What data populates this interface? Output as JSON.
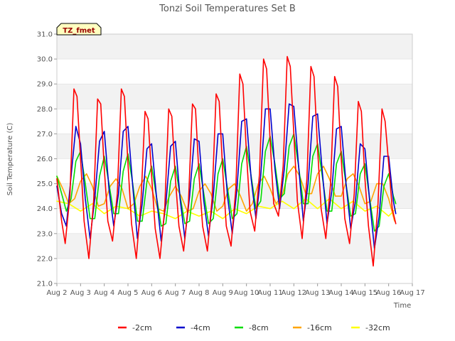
{
  "chart_data": {
    "type": "line",
    "title": "Tonzi Soil Temperatures Set B",
    "xlabel": "Time",
    "ylabel": "Soil Temperature (C)",
    "ylim": [
      21.0,
      31.0
    ],
    "xlim": [
      2,
      17
    ],
    "y_ticks": [
      "21.0",
      "22.0",
      "23.0",
      "24.0",
      "25.0",
      "26.0",
      "27.0",
      "28.0",
      "29.0",
      "30.0",
      "31.0"
    ],
    "x_ticks": [
      "Aug 2",
      "Aug 3",
      "Aug 4",
      "Aug 5",
      "Aug 6",
      "Aug 7",
      "Aug 8",
      "Aug 9",
      "Aug 10",
      "Aug 11",
      "Aug 12",
      "Aug 13",
      "Aug 14",
      "Aug 15",
      "Aug 16",
      "Aug 17"
    ],
    "x_tick_values": [
      2,
      3,
      4,
      5,
      6,
      7,
      8,
      9,
      10,
      11,
      12,
      13,
      14,
      15,
      16,
      17
    ],
    "grid": "horizontal bands",
    "legend_position": "bottom",
    "annotation": "TZ_fmet",
    "series": [
      {
        "name": "-2cm",
        "color": "#ff0000",
        "x": [
          2.0,
          2.2,
          2.35,
          2.55,
          2.72,
          2.85,
          3.0,
          3.15,
          3.35,
          3.55,
          3.72,
          3.85,
          4.0,
          4.15,
          4.35,
          4.55,
          4.72,
          4.85,
          5.0,
          5.15,
          5.35,
          5.55,
          5.72,
          5.85,
          6.0,
          6.15,
          6.35,
          6.55,
          6.72,
          6.85,
          7.0,
          7.15,
          7.35,
          7.55,
          7.72,
          7.85,
          8.0,
          8.15,
          8.35,
          8.55,
          8.72,
          8.85,
          9.0,
          9.15,
          9.35,
          9.55,
          9.72,
          9.85,
          10.0,
          10.15,
          10.35,
          10.55,
          10.72,
          10.85,
          11.0,
          11.15,
          11.35,
          11.55,
          11.72,
          11.85,
          12.0,
          12.15,
          12.35,
          12.55,
          12.72,
          12.85,
          13.0,
          13.15,
          13.35,
          13.55,
          13.72,
          13.85,
          14.0,
          14.15,
          14.35,
          14.55,
          14.72,
          14.85,
          15.0,
          15.15,
          15.35,
          15.55,
          15.72,
          15.85,
          16.0,
          16.15,
          16.3
        ],
        "y": [
          25.2,
          23.5,
          22.6,
          24.5,
          28.8,
          28.5,
          26.0,
          23.5,
          22.0,
          24.3,
          28.4,
          28.2,
          25.6,
          23.5,
          22.7,
          24.6,
          28.8,
          28.5,
          25.8,
          23.4,
          22.0,
          24.3,
          27.9,
          27.6,
          25.3,
          23.2,
          22.0,
          24.0,
          28.0,
          27.7,
          25.2,
          23.3,
          22.3,
          24.2,
          28.2,
          28.0,
          25.3,
          23.3,
          22.3,
          24.4,
          28.6,
          28.3,
          25.5,
          23.3,
          22.5,
          24.8,
          29.4,
          29.0,
          26.2,
          23.9,
          23.1,
          25.4,
          30.0,
          29.6,
          26.7,
          24.2,
          23.7,
          25.7,
          30.1,
          29.7,
          27.0,
          24.3,
          22.8,
          25.2,
          29.7,
          29.3,
          26.4,
          24.0,
          22.8,
          25.0,
          29.3,
          28.9,
          26.0,
          23.6,
          22.6,
          24.6,
          28.3,
          27.9,
          25.2,
          23.3,
          21.7,
          24.2,
          28.0,
          27.5,
          25.8,
          24.0,
          23.4
        ]
      },
      {
        "name": "-4cm",
        "color": "#0000cc",
        "x": [
          2.0,
          2.2,
          2.4,
          2.6,
          2.8,
          3.0,
          3.2,
          3.4,
          3.6,
          3.8,
          4.0,
          4.2,
          4.4,
          4.6,
          4.8,
          5.0,
          5.2,
          5.4,
          5.6,
          5.8,
          6.0,
          6.2,
          6.4,
          6.6,
          6.8,
          7.0,
          7.2,
          7.4,
          7.6,
          7.8,
          8.0,
          8.2,
          8.4,
          8.6,
          8.8,
          9.0,
          9.2,
          9.4,
          9.6,
          9.8,
          10.0,
          10.2,
          10.4,
          10.6,
          10.8,
          11.0,
          11.2,
          11.4,
          11.6,
          11.8,
          12.0,
          12.2,
          12.4,
          12.6,
          12.8,
          13.0,
          13.2,
          13.4,
          13.6,
          13.8,
          14.0,
          14.2,
          14.4,
          14.6,
          14.8,
          15.0,
          15.2,
          15.4,
          15.6,
          15.8,
          16.0,
          16.2,
          16.3
        ],
        "y": [
          24.9,
          23.8,
          23.3,
          25.3,
          27.3,
          26.6,
          24.4,
          22.8,
          24.4,
          26.7,
          27.1,
          24.8,
          23.3,
          24.6,
          27.1,
          27.3,
          24.9,
          22.8,
          24.2,
          26.4,
          26.6,
          24.5,
          22.7,
          24.2,
          26.5,
          26.7,
          24.4,
          22.8,
          24.5,
          26.8,
          26.7,
          24.3,
          22.9,
          24.5,
          27.0,
          27.0,
          24.5,
          23.0,
          24.8,
          27.5,
          27.6,
          25.2,
          23.6,
          25.3,
          28.0,
          28.0,
          25.6,
          24.0,
          25.6,
          28.2,
          28.1,
          25.7,
          23.5,
          25.0,
          27.7,
          27.8,
          25.5,
          23.4,
          24.7,
          27.2,
          27.3,
          25.0,
          23.2,
          24.3,
          26.6,
          26.4,
          24.3,
          22.4,
          23.7,
          26.1,
          26.1,
          24.3,
          23.8
        ]
      },
      {
        "name": "-8cm",
        "color": "#00dd00",
        "x": [
          2.0,
          2.2,
          2.4,
          2.6,
          2.8,
          3.0,
          3.2,
          3.4,
          3.6,
          3.8,
          4.0,
          4.2,
          4.4,
          4.6,
          4.8,
          5.0,
          5.2,
          5.4,
          5.6,
          5.8,
          6.0,
          6.2,
          6.4,
          6.6,
          6.8,
          7.0,
          7.2,
          7.4,
          7.6,
          7.8,
          8.0,
          8.2,
          8.4,
          8.6,
          8.8,
          9.0,
          9.2,
          9.4,
          9.6,
          9.8,
          10.0,
          10.2,
          10.4,
          10.6,
          10.8,
          11.0,
          11.2,
          11.4,
          11.6,
          11.8,
          12.0,
          12.2,
          12.4,
          12.6,
          12.8,
          13.0,
          13.2,
          13.4,
          13.6,
          13.8,
          14.0,
          14.2,
          14.4,
          14.6,
          14.8,
          15.0,
          15.2,
          15.4,
          15.6,
          15.8,
          16.0,
          16.2,
          16.3
        ],
        "y": [
          25.3,
          24.6,
          23.9,
          24.4,
          25.9,
          26.3,
          25.0,
          23.6,
          23.6,
          25.3,
          26.1,
          25.0,
          23.8,
          23.8,
          25.5,
          26.2,
          25.0,
          23.5,
          23.5,
          25.1,
          25.7,
          24.5,
          23.3,
          23.4,
          25.1,
          25.7,
          24.5,
          23.4,
          23.5,
          25.2,
          25.8,
          24.6,
          23.4,
          23.6,
          25.4,
          26.0,
          24.8,
          23.6,
          23.8,
          25.8,
          26.5,
          25.3,
          24.0,
          24.3,
          26.3,
          26.9,
          25.8,
          24.4,
          24.6,
          26.5,
          27.0,
          25.7,
          24.2,
          24.2,
          26.1,
          26.6,
          25.3,
          23.9,
          23.9,
          25.8,
          26.3,
          25.0,
          23.7,
          23.8,
          25.4,
          25.8,
          24.4,
          23.1,
          23.3,
          24.9,
          25.4,
          24.5,
          24.2
        ]
      },
      {
        "name": "-16cm",
        "color": "#ffa500",
        "x": [
          2.0,
          2.25,
          2.5,
          2.75,
          3.0,
          3.25,
          3.5,
          3.75,
          4.0,
          4.25,
          4.5,
          4.75,
          5.0,
          5.25,
          5.5,
          5.75,
          6.0,
          6.25,
          6.5,
          6.75,
          7.0,
          7.25,
          7.5,
          7.75,
          8.0,
          8.25,
          8.5,
          8.75,
          9.0,
          9.25,
          9.5,
          9.75,
          10.0,
          10.25,
          10.5,
          10.75,
          11.0,
          11.25,
          11.5,
          11.75,
          12.0,
          12.25,
          12.5,
          12.75,
          13.0,
          13.25,
          13.5,
          13.75,
          14.0,
          14.25,
          14.5,
          14.75,
          15.0,
          15.25,
          15.5,
          15.75,
          16.0,
          16.25
        ],
        "y": [
          25.3,
          24.8,
          24.2,
          24.4,
          25.1,
          25.4,
          24.9,
          24.1,
          24.2,
          24.9,
          25.2,
          24.8,
          24.0,
          24.2,
          24.9,
          25.3,
          24.8,
          24.0,
          23.9,
          24.5,
          24.9,
          24.5,
          23.9,
          24.0,
          24.7,
          25.0,
          24.6,
          23.9,
          24.1,
          24.8,
          25.0,
          24.5,
          23.9,
          24.2,
          25.0,
          25.3,
          24.8,
          24.2,
          24.5,
          25.4,
          25.7,
          25.3,
          24.6,
          24.6,
          25.4,
          25.7,
          25.2,
          24.5,
          24.5,
          25.2,
          25.4,
          24.9,
          24.2,
          24.3,
          25.0,
          25.0,
          24.4,
          23.5
        ]
      },
      {
        "name": "-32cm",
        "color": "#ffff00",
        "x": [
          2.0,
          2.5,
          3.0,
          3.5,
          4.0,
          4.5,
          5.0,
          5.5,
          6.0,
          6.5,
          7.0,
          7.5,
          8.0,
          8.5,
          9.0,
          9.5,
          10.0,
          10.5,
          11.0,
          11.5,
          12.0,
          12.5,
          13.0,
          13.5,
          14.0,
          14.5,
          15.0,
          15.5,
          16.0,
          16.3
        ],
        "y": [
          24.3,
          24.2,
          23.9,
          24.2,
          23.8,
          24.1,
          24.0,
          23.7,
          23.9,
          23.8,
          23.6,
          23.9,
          23.7,
          23.9,
          23.6,
          24.0,
          23.8,
          24.1,
          24.0,
          24.3,
          24.0,
          24.4,
          24.0,
          24.4,
          24.0,
          24.3,
          23.9,
          24.1,
          23.7,
          24.0
        ]
      }
    ]
  }
}
